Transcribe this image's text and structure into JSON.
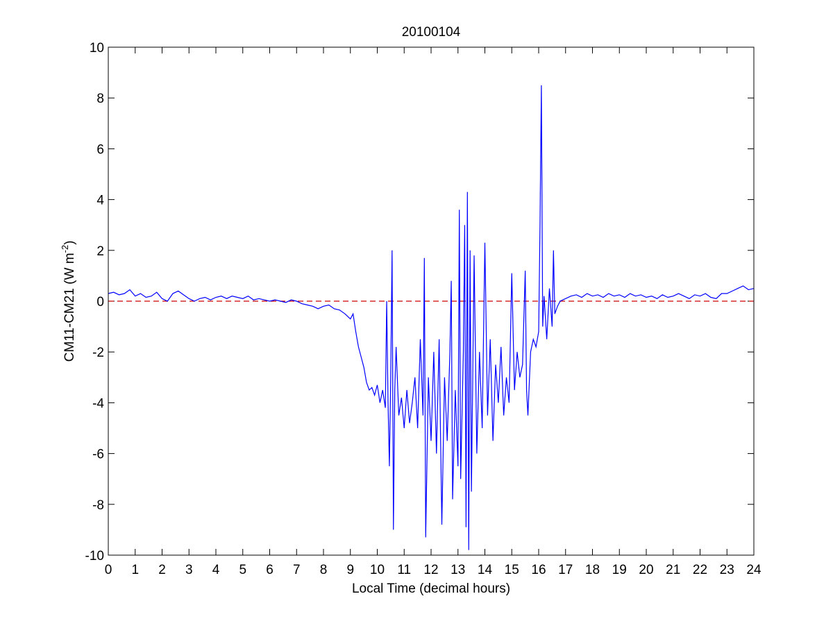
{
  "chart_data": {
    "type": "line",
    "title": "20100104",
    "xlabel": "Local Time (decimal hours)",
    "ylabel": "CM11-CM21 (W m",
    "ylabel_sup": "-2",
    "ylabel_end": ")",
    "x": [
      0,
      0.2,
      0.4,
      0.6,
      0.8,
      1.0,
      1.2,
      1.4,
      1.6,
      1.8,
      2.0,
      2.2,
      2.4,
      2.6,
      2.8,
      3.0,
      3.2,
      3.4,
      3.6,
      3.8,
      4.0,
      4.2,
      4.4,
      4.6,
      4.8,
      5.0,
      5.2,
      5.4,
      5.6,
      5.8,
      6.0,
      6.2,
      6.4,
      6.6,
      6.8,
      7.0,
      7.2,
      7.4,
      7.6,
      7.8,
      8.0,
      8.2,
      8.4,
      8.6,
      8.8,
      9.0,
      9.1,
      9.2,
      9.3,
      9.4,
      9.5,
      9.6,
      9.7,
      9.8,
      9.9,
      10.0,
      10.1,
      10.2,
      10.3,
      10.35,
      10.4,
      10.45,
      10.5,
      10.55,
      10.6,
      10.65,
      10.7,
      10.8,
      10.9,
      11.0,
      11.1,
      11.2,
      11.3,
      11.4,
      11.5,
      11.6,
      11.7,
      11.75,
      11.8,
      11.9,
      12.0,
      12.1,
      12.2,
      12.3,
      12.4,
      12.5,
      12.6,
      12.7,
      12.75,
      12.8,
      12.9,
      13.0,
      13.05,
      13.1,
      13.2,
      13.25,
      13.3,
      13.35,
      13.4,
      13.45,
      13.5,
      13.6,
      13.7,
      13.8,
      13.9,
      14.0,
      14.1,
      14.2,
      14.3,
      14.4,
      14.5,
      14.6,
      14.7,
      14.8,
      14.9,
      15.0,
      15.1,
      15.2,
      15.3,
      15.4,
      15.5,
      15.55,
      15.6,
      15.7,
      15.8,
      15.9,
      16.0,
      16.05,
      16.1,
      16.15,
      16.2,
      16.3,
      16.4,
      16.5,
      16.55,
      16.6,
      16.7,
      16.8,
      17.0,
      17.2,
      17.4,
      17.6,
      17.8,
      18.0,
      18.2,
      18.4,
      18.6,
      18.8,
      19.0,
      19.2,
      19.4,
      19.6,
      19.8,
      20.0,
      20.2,
      20.4,
      20.6,
      20.8,
      21.0,
      21.2,
      21.4,
      21.6,
      21.8,
      22.0,
      22.2,
      22.4,
      22.6,
      22.8,
      23.0,
      23.2,
      23.4,
      23.6,
      23.8,
      24.0
    ],
    "series": [
      {
        "color": "#0000ff",
        "values": [
          0.3,
          0.35,
          0.25,
          0.3,
          0.45,
          0.2,
          0.3,
          0.15,
          0.2,
          0.35,
          0.1,
          0.0,
          0.3,
          0.4,
          0.25,
          0.1,
          0.0,
          0.1,
          0.15,
          0.05,
          0.15,
          0.2,
          0.1,
          0.2,
          0.15,
          0.1,
          0.2,
          0.05,
          0.1,
          0.05,
          0.0,
          0.05,
          0.0,
          -0.05,
          0.05,
          0.0,
          -0.1,
          -0.15,
          -0.2,
          -0.3,
          -0.2,
          -0.15,
          -0.3,
          -0.35,
          -0.5,
          -0.7,
          -0.5,
          -1.2,
          -1.8,
          -2.2,
          -2.6,
          -3.2,
          -3.5,
          -3.4,
          -3.7,
          -3.3,
          -4.0,
          -3.5,
          -4.2,
          0.0,
          -4.0,
          -6.5,
          -3.0,
          2.0,
          -9.0,
          -3.5,
          -1.8,
          -4.5,
          -3.8,
          -5.0,
          -3.5,
          -4.8,
          -4.0,
          -3.0,
          -5.0,
          -1.5,
          -4.5,
          1.7,
          -9.3,
          -3.0,
          -5.5,
          -2.0,
          -6.0,
          -1.5,
          -8.8,
          -3.0,
          -5.5,
          -2.0,
          0.8,
          -7.8,
          -3.5,
          -6.5,
          3.6,
          -7.0,
          -2.0,
          3.0,
          -8.9,
          4.3,
          -9.8,
          2.0,
          -7.5,
          1.8,
          -6.0,
          -2.0,
          -5.0,
          2.3,
          -4.5,
          -1.5,
          -5.5,
          -2.5,
          -4.0,
          -1.8,
          -4.5,
          -3.0,
          -4.0,
          1.1,
          -3.5,
          -2.0,
          -3.0,
          -2.5,
          1.2,
          -3.5,
          -4.5,
          -2.0,
          -1.5,
          -1.8,
          -1.2,
          3.0,
          8.5,
          -1.0,
          0.2,
          -1.5,
          0.5,
          -1.0,
          2.0,
          -0.5,
          -0.2,
          0.0,
          0.1,
          0.2,
          0.25,
          0.15,
          0.3,
          0.2,
          0.25,
          0.15,
          0.3,
          0.2,
          0.25,
          0.15,
          0.3,
          0.2,
          0.25,
          0.15,
          0.2,
          0.1,
          0.25,
          0.15,
          0.2,
          0.3,
          0.2,
          0.1,
          0.25,
          0.2,
          0.3,
          0.15,
          0.1,
          0.3,
          0.3,
          0.4,
          0.5,
          0.6,
          0.45,
          0.5
        ]
      }
    ],
    "ref_line": {
      "y": 0,
      "color": "#cc0000",
      "dashed": true
    },
    "xlim": [
      0,
      24
    ],
    "xticks": [
      0,
      1,
      2,
      3,
      4,
      5,
      6,
      7,
      8,
      9,
      10,
      11,
      12,
      13,
      14,
      15,
      16,
      17,
      18,
      19,
      20,
      21,
      22,
      23,
      24
    ],
    "ylim": [
      -10,
      10
    ],
    "yticks": [
      -10,
      -8,
      -6,
      -4,
      -2,
      0,
      2,
      4,
      6,
      8,
      10
    ]
  }
}
